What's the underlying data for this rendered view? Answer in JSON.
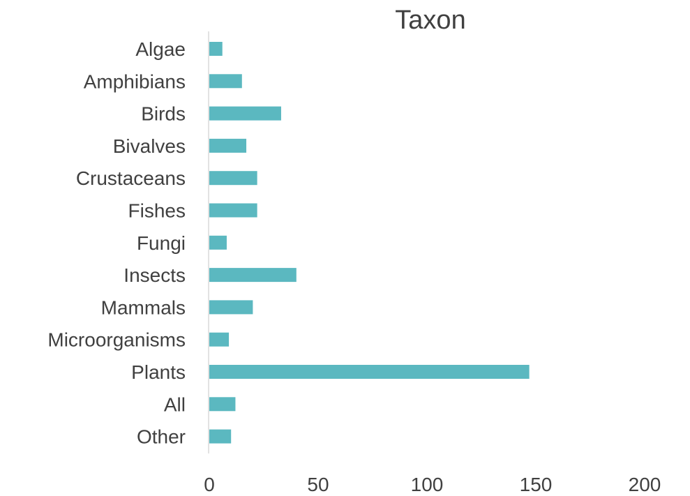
{
  "chart_data": {
    "type": "bar",
    "orientation": "horizontal",
    "title": "Taxon",
    "categories": [
      "Algae",
      "Amphibians",
      "Birds",
      "Bivalves",
      "Crustaceans",
      "Fishes",
      "Fungi",
      "Insects",
      "Mammals",
      "Microorganisms",
      "Plants",
      "All",
      "Other"
    ],
    "values": [
      6,
      15,
      33,
      17,
      22,
      22,
      8,
      40,
      20,
      9,
      147,
      12,
      10
    ],
    "xlim": [
      0,
      200
    ],
    "xticks": [
      "0",
      "50",
      "100",
      "150",
      "200"
    ],
    "xlabel": "",
    "ylabel": "",
    "grid": false,
    "legend": "none",
    "bar_color": "#5bb8c0",
    "axis_color": "#d9d9d9",
    "text_color": "#404040"
  }
}
